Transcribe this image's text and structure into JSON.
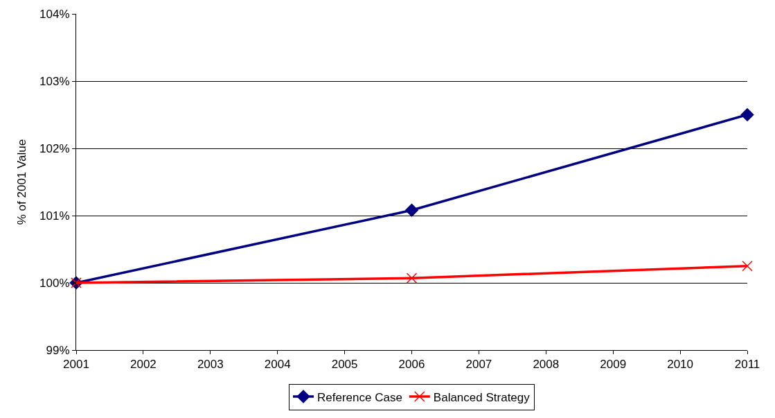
{
  "chart_data": {
    "type": "line",
    "ylabel": "% of 2001 Value",
    "x": [
      2001,
      2006,
      2011
    ],
    "series": [
      {
        "name": "Reference Case",
        "color": "#000080",
        "marker": "diamond",
        "values": [
          100,
          101.08,
          102.5
        ]
      },
      {
        "name": "Balanced Strategy",
        "color": "#ff0000",
        "marker": "cross",
        "values": [
          100,
          100.07,
          100.25
        ]
      }
    ],
    "xlim": [
      2001,
      2011
    ],
    "xticks": [
      2001,
      2002,
      2003,
      2004,
      2005,
      2006,
      2007,
      2008,
      2009,
      2010,
      2011
    ],
    "ylim": [
      99,
      104
    ],
    "yticks": [
      {
        "value": 99,
        "label": "99%"
      },
      {
        "value": 100,
        "label": "100%"
      },
      {
        "value": 101,
        "label": "101%"
      },
      {
        "value": 102,
        "label": "102%"
      },
      {
        "value": 103,
        "label": "103%"
      },
      {
        "value": 104,
        "label": "104%"
      }
    ],
    "grid": "y",
    "legend": "bottom",
    "line_style": "solid"
  }
}
